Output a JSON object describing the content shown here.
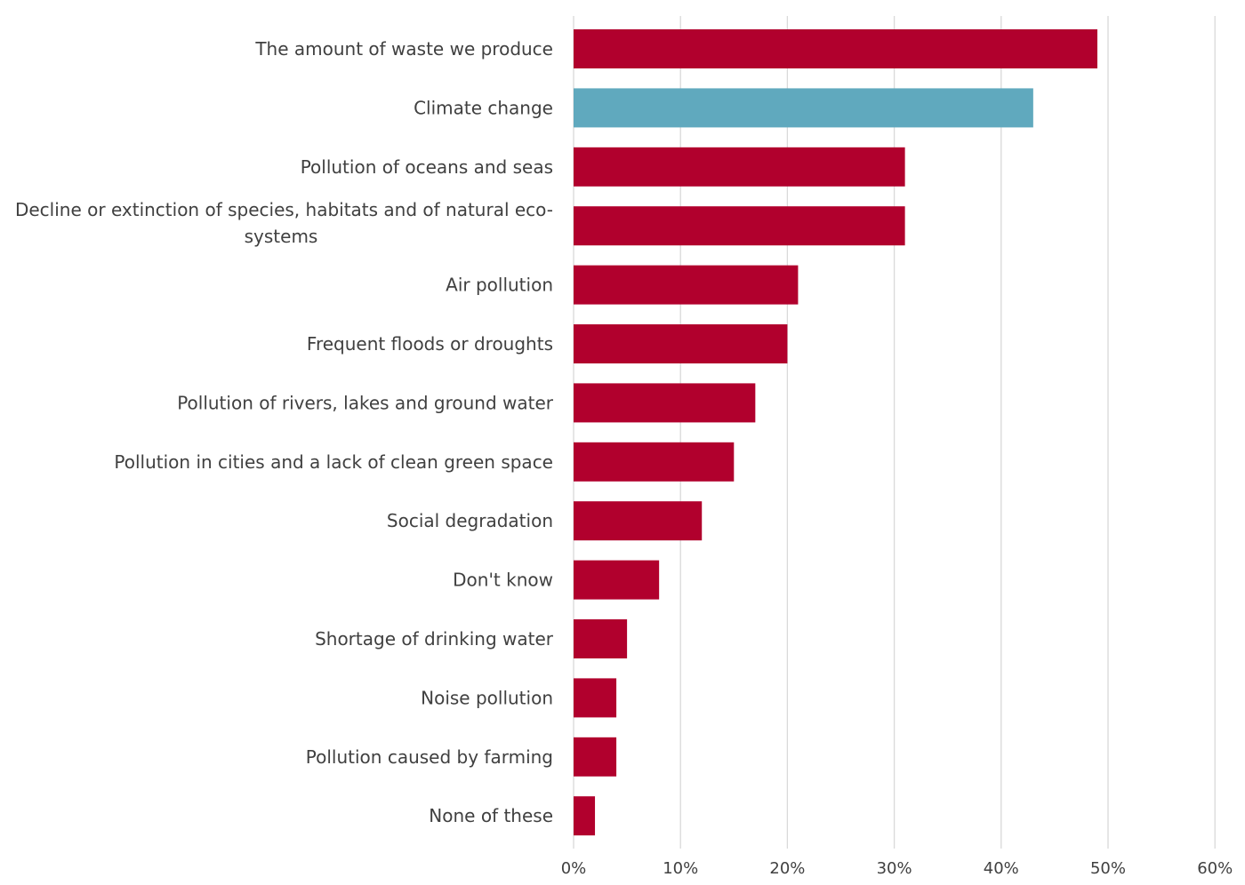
{
  "chart_data": {
    "type": "bar",
    "orientation": "horizontal",
    "title": "",
    "xlabel": "",
    "ylabel": "",
    "xlim": [
      0,
      60
    ],
    "tick_values": [
      0,
      10,
      20,
      30,
      40,
      50,
      60
    ],
    "tick_labels": [
      "0%",
      "10%",
      "20%",
      "30%",
      "40%",
      "50%",
      "60%"
    ],
    "grid": true,
    "legend": "none",
    "colors": {
      "default_bar": "#b1002d",
      "highlight_bar": "#60a9be",
      "gridline": "#d9d9d9",
      "text": "#404040"
    },
    "categories": [
      "The amount of waste we produce",
      "Climate change",
      "Pollution of oceans and seas",
      "Decline or extinction of species, habitats and of natural eco-systems",
      "Air pollution",
      "Frequent floods or droughts",
      "Pollution of rivers, lakes and ground water",
      "Pollution in cities and a lack of clean green space",
      "Social degradation",
      "Don't know",
      "Shortage of drinking water",
      "Noise pollution",
      "Pollution caused by farming",
      "None of these"
    ],
    "label_lines": [
      [
        "The amount of waste we produce"
      ],
      [
        "Climate change"
      ],
      [
        "Pollution of oceans and seas"
      ],
      [
        "Decline or extinction of species, habitats and of natural eco-",
        "systems"
      ],
      [
        "Air pollution"
      ],
      [
        "Frequent floods or droughts"
      ],
      [
        "Pollution of rivers, lakes and ground water"
      ],
      [
        "Pollution in cities and a lack of clean green space"
      ],
      [
        "Social degradation"
      ],
      [
        "Don't know"
      ],
      [
        "Shortage of drinking water"
      ],
      [
        "Noise pollution"
      ],
      [
        "Pollution caused by farming"
      ],
      [
        "None of these"
      ]
    ],
    "values": [
      49,
      43,
      31,
      31,
      21,
      20,
      17,
      15,
      12,
      8,
      5,
      4,
      4,
      2
    ],
    "highlight": [
      "Climate change"
    ]
  }
}
